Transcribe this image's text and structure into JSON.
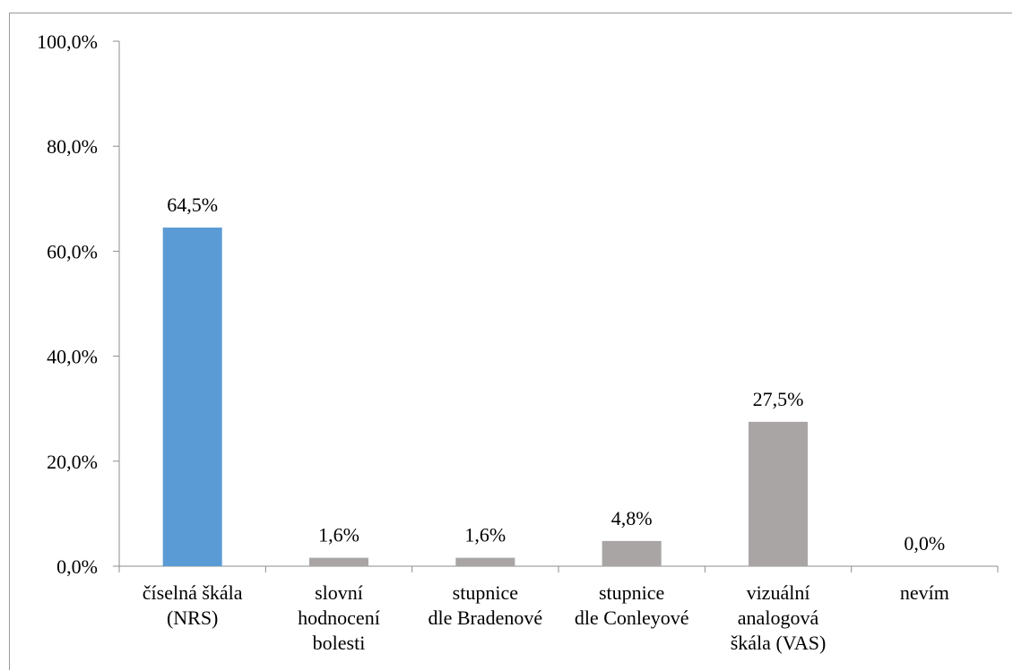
{
  "chart_data": {
    "type": "bar",
    "categories": [
      [
        "číselná škála",
        "(NRS)"
      ],
      [
        "slovní",
        "hodnocení",
        "bolesti"
      ],
      [
        "stupnice",
        "dle Bradenové"
      ],
      [
        "stupnice",
        "dle Conleyové"
      ],
      [
        "vizuální",
        "analogová",
        "škála (VAS)"
      ],
      [
        "nevím"
      ]
    ],
    "values": [
      64.5,
      1.6,
      1.6,
      4.8,
      27.5,
      0.0
    ],
    "data_labels": [
      "64,5%",
      "1,6%",
      "1,6%",
      "4,8%",
      "27,5%",
      "0,0%"
    ],
    "yticks": [
      0,
      20,
      40,
      60,
      80,
      100
    ],
    "ytick_labels": [
      "0,0%",
      "20,0%",
      "40,0%",
      "60,0%",
      "80,0%",
      "100,0%"
    ],
    "ylim": [
      0,
      100
    ],
    "title": "",
    "xlabel": "",
    "ylabel": "",
    "grid": false,
    "legend": "none",
    "colors": [
      "#5b9bd5",
      "#a9a5a5",
      "#a9a5a5",
      "#a9a5a5",
      "#a9a5a5",
      "#a9a5a5"
    ],
    "axis_color": "#8c8c8c"
  }
}
